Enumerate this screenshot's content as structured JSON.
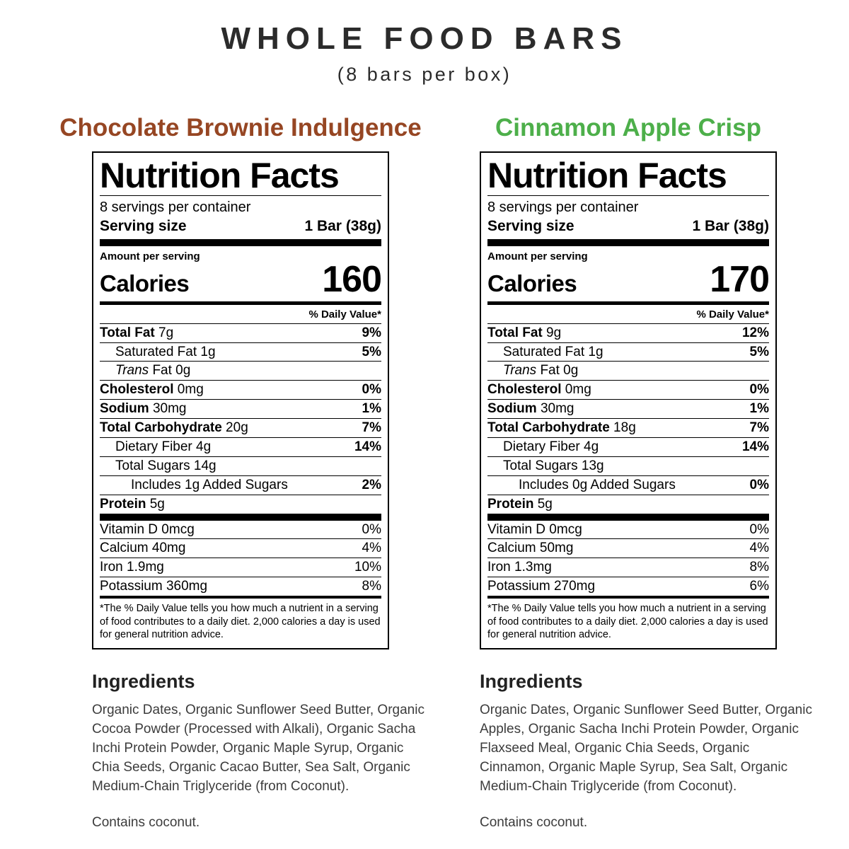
{
  "page": {
    "title": "WHOLE FOOD BARS",
    "subtitle": "(8 bars per box)"
  },
  "colors": {
    "chocolate_heading": "#964623",
    "cinnamon_heading": "#4DAF4A",
    "label_border": "#000000"
  },
  "products": [
    {
      "name": "Chocolate Brownie Indulgence",
      "label": {
        "title": "Nutrition Facts",
        "servings_per_container": "8 servings per container",
        "serving_size_label": "Serving size",
        "serving_size_value": "1 Bar (38g)",
        "amount_per_serving": "Amount per serving",
        "calories_label": "Calories",
        "calories_value": "160",
        "daily_value_header": "% Daily Value*",
        "rows": [
          {
            "name": "Total Fat",
            "amount": "7g",
            "dv": "9%",
            "bold": true,
            "dvBold": true,
            "indent": 0
          },
          {
            "name": "Saturated Fat",
            "amount": "1g",
            "dv": "5%",
            "dvBold": true,
            "indent": 1
          },
          {
            "italic": "Trans",
            "name": "Fat",
            "amount": "0g",
            "dv": "",
            "indent": 1
          },
          {
            "name": "Cholesterol",
            "amount": "0mg",
            "dv": "0%",
            "bold": true,
            "dvBold": true,
            "indent": 0
          },
          {
            "name": "Sodium",
            "amount": "30mg",
            "dv": "1%",
            "bold": true,
            "dvBold": true,
            "indent": 0
          },
          {
            "name": "Total Carbohydrate",
            "amount": "20g",
            "dv": "7%",
            "bold": true,
            "dvBold": true,
            "indent": 0
          },
          {
            "name": "Dietary Fiber",
            "amount": "4g",
            "dv": "14%",
            "dvBold": true,
            "indent": 1
          },
          {
            "name": "Total Sugars",
            "amount": "14g",
            "dv": "",
            "indent": 1
          },
          {
            "name": "Includes 1g Added Sugars",
            "amount": "",
            "dv": "2%",
            "dvBold": true,
            "indent": 2
          },
          {
            "name": "Protein",
            "amount": "5g",
            "dv": "",
            "bold": true,
            "indent": 0
          }
        ],
        "vitamins": [
          {
            "name": "Vitamin D",
            "amount": "0mcg",
            "dv": "0%"
          },
          {
            "name": "Calcium",
            "amount": "40mg",
            "dv": "4%"
          },
          {
            "name": "Iron",
            "amount": "1.9mg",
            "dv": "10%"
          },
          {
            "name": "Potassium",
            "amount": "360mg",
            "dv": "8%"
          }
        ],
        "footnote": "*The % Daily Value tells you how much a nutrient in a serving of food contributes to a daily diet. 2,000 calories a day is used for general nutrition advice."
      },
      "ingredients": {
        "heading": "Ingredients",
        "text": "Organic Dates, Organic Sunflower Seed Butter, Organic Cocoa Powder (Processed with Alkali), Organic Sacha Inchi Protein Powder, Organic Maple Syrup, Organic Chia Seeds, Organic Cacao Butter, Sea Salt, Organic Medium-Chain Triglyceride (from Coconut).",
        "allergen": "Contains coconut."
      }
    },
    {
      "name": "Cinnamon Apple Crisp",
      "label": {
        "title": "Nutrition Facts",
        "servings_per_container": "8 servings per container",
        "serving_size_label": "Serving size",
        "serving_size_value": "1 Bar (38g)",
        "amount_per_serving": "Amount per serving",
        "calories_label": "Calories",
        "calories_value": "170",
        "daily_value_header": "% Daily Value*",
        "rows": [
          {
            "name": "Total Fat",
            "amount": "9g",
            "dv": "12%",
            "bold": true,
            "dvBold": true,
            "indent": 0
          },
          {
            "name": "Saturated Fat",
            "amount": "1g",
            "dv": "5%",
            "dvBold": true,
            "indent": 1
          },
          {
            "italic": "Trans",
            "name": "Fat",
            "amount": "0g",
            "dv": "",
            "indent": 1
          },
          {
            "name": "Cholesterol",
            "amount": "0mg",
            "dv": "0%",
            "bold": true,
            "dvBold": true,
            "indent": 0
          },
          {
            "name": "Sodium",
            "amount": "30mg",
            "dv": "1%",
            "bold": true,
            "dvBold": true,
            "indent": 0
          },
          {
            "name": "Total Carbohydrate",
            "amount": "18g",
            "dv": "7%",
            "bold": true,
            "dvBold": true,
            "indent": 0
          },
          {
            "name": "Dietary Fiber",
            "amount": "4g",
            "dv": "14%",
            "dvBold": true,
            "indent": 1
          },
          {
            "name": "Total Sugars",
            "amount": "13g",
            "dv": "",
            "indent": 1
          },
          {
            "name": "Includes 0g Added Sugars",
            "amount": "",
            "dv": "0%",
            "dvBold": true,
            "indent": 2
          },
          {
            "name": "Protein",
            "amount": "5g",
            "dv": "",
            "bold": true,
            "indent": 0
          }
        ],
        "vitamins": [
          {
            "name": "Vitamin D",
            "amount": "0mcg",
            "dv": "0%"
          },
          {
            "name": "Calcium",
            "amount": "50mg",
            "dv": "4%"
          },
          {
            "name": "Iron",
            "amount": "1.3mg",
            "dv": "8%"
          },
          {
            "name": "Potassium",
            "amount": "270mg",
            "dv": "6%"
          }
        ],
        "footnote": "*The % Daily Value tells you how much a nutrient in a serving of food contributes to a daily diet. 2,000 calories a day is used for general nutrition advice."
      },
      "ingredients": {
        "heading": "Ingredients",
        "text": "Organic Dates, Organic Sunflower Seed Butter, Organic Apples, Organic Sacha Inchi Protein Powder, Organic Flaxseed Meal, Organic Chia Seeds, Organic Cinnamon, Organic Maple Syrup, Sea Salt, Organic Medium-Chain Triglyceride (from Coconut).",
        "allergen": "Contains coconut."
      }
    }
  ]
}
